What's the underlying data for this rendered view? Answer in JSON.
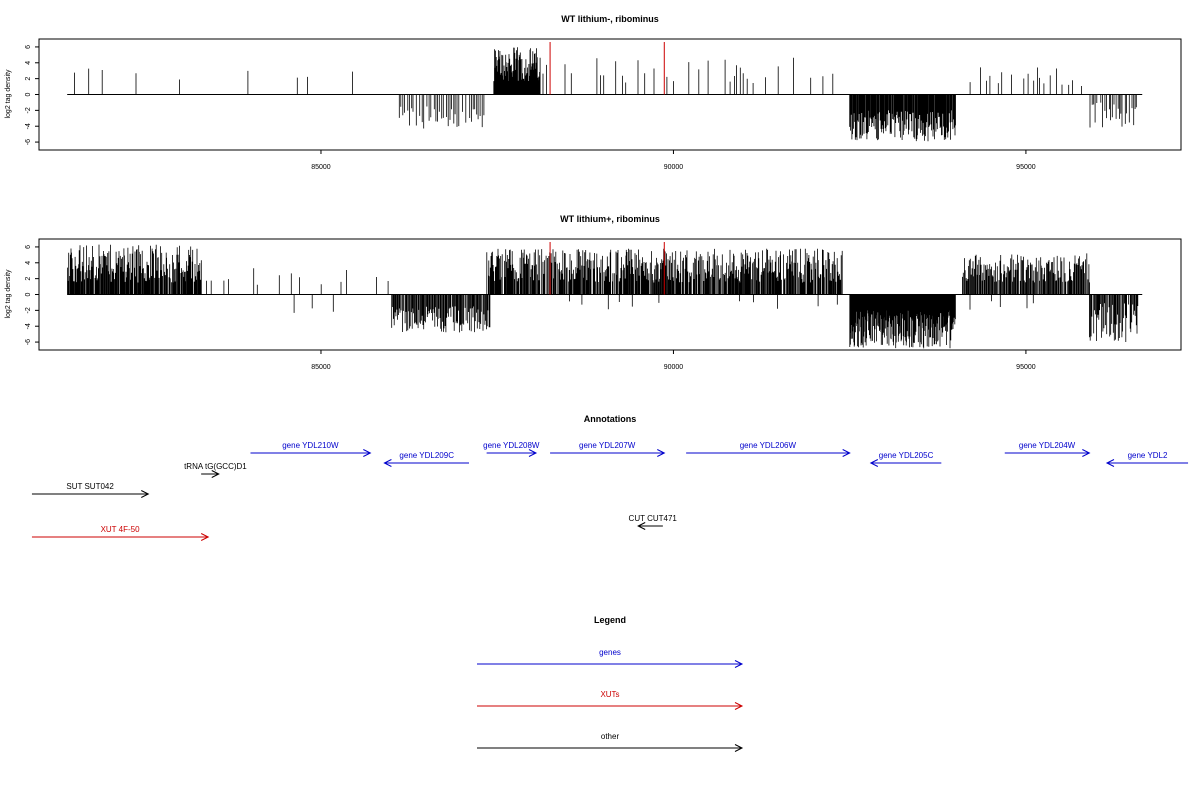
{
  "chart_data": [
    {
      "type": "bar",
      "title": "WT lithium-, ribominus",
      "xlabel": "",
      "ylabel": "log2 tag density",
      "xlim": [
        81000,
        97200
      ],
      "ylim": [
        -7,
        7
      ],
      "xticks": [
        85000,
        90000,
        95000
      ],
      "yticks": [
        6,
        4,
        2,
        0,
        -2,
        -4,
        -6
      ],
      "grid": false,
      "markers": {
        "color": "#cc0000",
        "x": [
          88250,
          89870
        ]
      },
      "segments": [
        {
          "from": 81400,
          "to": 82000,
          "step": 70,
          "sign": 1,
          "min": 1.5,
          "max": 3.5,
          "fill": 0.55
        },
        {
          "from": 82000,
          "to": 85800,
          "step": 70,
          "sign": 1,
          "min": 1.5,
          "max": 4.0,
          "fill": 0.2
        },
        {
          "from": 86100,
          "to": 87300,
          "step": 25,
          "sign": -1,
          "min": 1.5,
          "max": 4.3,
          "fill": 0.8
        },
        {
          "from": 87450,
          "to": 88100,
          "step": 8,
          "sign": 1,
          "min": 1.5,
          "max": 6.0,
          "fill": 1.0
        },
        {
          "from": 88100,
          "to": 92300,
          "step": 45,
          "sign": 1,
          "min": 1.0,
          "max": 4.8,
          "fill": 0.45
        },
        {
          "from": 92500,
          "to": 94000,
          "step": 10,
          "sign": -1,
          "min": 2.0,
          "max": 6.0,
          "fill": 1.0
        },
        {
          "from": 94200,
          "to": 95800,
          "step": 45,
          "sign": 1,
          "min": 1.0,
          "max": 3.5,
          "fill": 0.45
        },
        {
          "from": 95900,
          "to": 96600,
          "step": 20,
          "sign": -1,
          "min": 1.0,
          "max": 4.3,
          "fill": 0.7
        }
      ]
    },
    {
      "type": "bar",
      "title": "WT lithium+, ribominus",
      "xlabel": "",
      "ylabel": "log2 tag density",
      "xlim": [
        81000,
        97200
      ],
      "ylim": [
        -7,
        7
      ],
      "xticks": [
        85000,
        90000,
        95000
      ],
      "yticks": [
        6,
        4,
        2,
        0,
        -2,
        -4,
        -6
      ],
      "grid": false,
      "markers": {
        "color": "#cc0000",
        "x": [
          88250,
          89870
        ]
      },
      "segments": [
        {
          "from": 81400,
          "to": 83300,
          "step": 10,
          "sign": 1,
          "min": 1.5,
          "max": 6.3,
          "fill": 0.95
        },
        {
          "from": 83300,
          "to": 86000,
          "step": 60,
          "sign": 1,
          "min": 1.0,
          "max": 3.5,
          "fill": 0.35
        },
        {
          "from": 84400,
          "to": 85600,
          "step": 150,
          "sign": -1,
          "min": 1.0,
          "max": 2.5,
          "fill": 0.4
        },
        {
          "from": 86000,
          "to": 87400,
          "step": 12,
          "sign": -1,
          "min": 1.5,
          "max": 4.8,
          "fill": 0.95
        },
        {
          "from": 87350,
          "to": 92400,
          "step": 10,
          "sign": 1,
          "min": 1.5,
          "max": 5.8,
          "fill": 0.9
        },
        {
          "from": 88500,
          "to": 92300,
          "step": 90,
          "sign": -1,
          "min": 0.5,
          "max": 2.0,
          "fill": 0.4
        },
        {
          "from": 92500,
          "to": 94000,
          "step": 7,
          "sign": -1,
          "min": 2.0,
          "max": 6.8,
          "fill": 1.0
        },
        {
          "from": 94100,
          "to": 95900,
          "step": 12,
          "sign": 1,
          "min": 1.5,
          "max": 5.2,
          "fill": 0.95
        },
        {
          "from": 94200,
          "to": 95800,
          "step": 100,
          "sign": -1,
          "min": 0.5,
          "max": 2.0,
          "fill": 0.4
        },
        {
          "from": 95900,
          "to": 96600,
          "step": 12,
          "sign": -1,
          "min": 1.0,
          "max": 6.0,
          "fill": 0.9
        }
      ]
    }
  ],
  "annotations": {
    "title": "Annotations",
    "features": [
      {
        "label": "gene YDL210W",
        "color": "#0000cc",
        "x1": 84000,
        "x2": 85700,
        "row": 0,
        "dir": "right"
      },
      {
        "label": "gene YDL209C",
        "color": "#0000cc",
        "x1": 85900,
        "x2": 87100,
        "row": 1,
        "dir": "left"
      },
      {
        "label": "gene YDL208W",
        "color": "#0000cc",
        "x1": 87350,
        "x2": 88050,
        "row": 0,
        "dir": "right"
      },
      {
        "label": "gene YDL207W",
        "color": "#0000cc",
        "x1": 88250,
        "x2": 89870,
        "row": 0,
        "dir": "right"
      },
      {
        "label": "gene YDL206W",
        "color": "#0000cc",
        "x1": 90180,
        "x2": 92500,
        "row": 0,
        "dir": "right"
      },
      {
        "label": "gene YDL205C",
        "color": "#0000cc",
        "x1": 92800,
        "x2": 93800,
        "row": 1,
        "dir": "left"
      },
      {
        "label": "gene YDL204W",
        "color": "#0000cc",
        "x1": 94700,
        "x2": 95900,
        "row": 0,
        "dir": "right"
      },
      {
        "label": "gene YDL2",
        "color": "#0000cc",
        "x1": 96150,
        "x2": 97300,
        "row": 1,
        "dir": "left"
      },
      {
        "label": "tRNA tG(GCC)D1",
        "color": "#000000",
        "x1": 83300,
        "x2": 83550,
        "row": 2,
        "dir": "right"
      },
      {
        "label": "SUT SUT042",
        "color": "#000000",
        "x1": 80900,
        "x2": 82550,
        "row": 3,
        "dir": "right"
      },
      {
        "label": "CUT CUT471",
        "color": "#000000",
        "x1": 89500,
        "x2": 89850,
        "row": 4,
        "dir": "left"
      },
      {
        "label": "XUT 4F-50",
        "color": "#cc0000",
        "x1": 80900,
        "x2": 83400,
        "row": 5,
        "dir": "right"
      }
    ]
  },
  "legend": {
    "title": "Legend",
    "items": [
      {
        "label": "genes",
        "color": "#0000cc"
      },
      {
        "label": "XUTs",
        "color": "#cc0000"
      },
      {
        "label": "other",
        "color": "#000000"
      }
    ]
  }
}
